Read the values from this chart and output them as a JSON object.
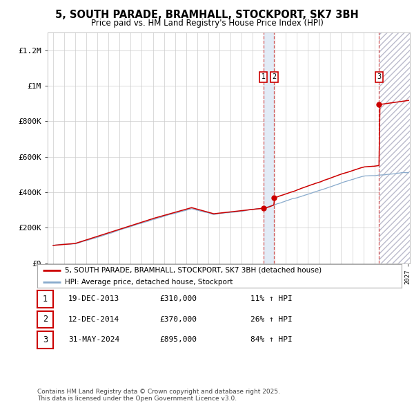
{
  "title": "5, SOUTH PARADE, BRAMHALL, STOCKPORT, SK7 3BH",
  "subtitle": "Price paid vs. HM Land Registry's House Price Index (HPI)",
  "ylim": [
    0,
    1300000
  ],
  "yticks": [
    0,
    200000,
    400000,
    600000,
    800000,
    1000000,
    1200000
  ],
  "ytick_labels": [
    "£0",
    "£200K",
    "£400K",
    "£600K",
    "£800K",
    "£1M",
    "£1.2M"
  ],
  "background_color": "#ffffff",
  "grid_color": "#cccccc",
  "red_line_color": "#cc0000",
  "blue_line_color": "#88aacc",
  "transaction_dates_num": [
    2013.97,
    2014.95,
    2024.42
  ],
  "transaction_prices": [
    310000,
    370000,
    895000
  ],
  "transaction_labels": [
    "1",
    "2",
    "3"
  ],
  "footnote": "Contains HM Land Registry data © Crown copyright and database right 2025.\nThis data is licensed under the Open Government Licence v3.0.",
  "legend_red": "5, SOUTH PARADE, BRAMHALL, STOCKPORT, SK7 3BH (detached house)",
  "legend_blue": "HPI: Average price, detached house, Stockport",
  "table_rows": [
    {
      "num": "1",
      "date": "19-DEC-2013",
      "price": "£310,000",
      "hpi": "11% ↑ HPI"
    },
    {
      "num": "2",
      "date": "12-DEC-2014",
      "price": "£370,000",
      "hpi": "26% ↑ HPI"
    },
    {
      "num": "3",
      "date": "31-MAY-2024",
      "price": "£895,000",
      "hpi": "84% ↑ HPI"
    }
  ]
}
